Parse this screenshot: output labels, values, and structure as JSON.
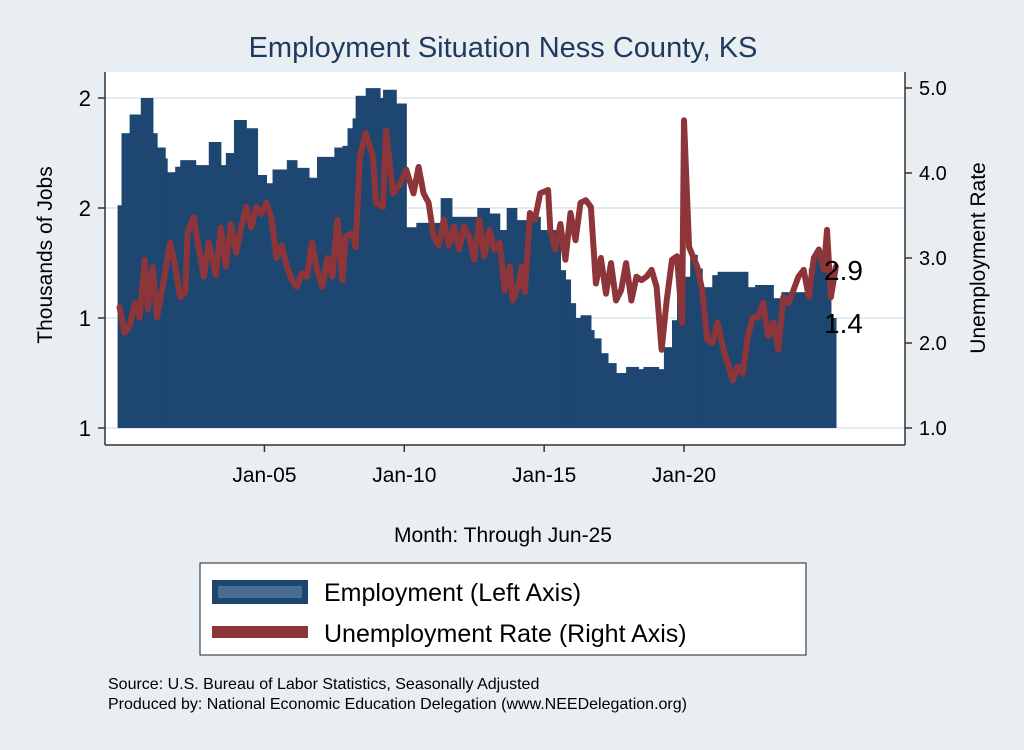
{
  "chart_data": {
    "type": "bar+line",
    "title": "Employment Situation Ness  County, KS",
    "xlabel": "Month: Through Jun-25",
    "ylabel_left": "Thousands of Jobs",
    "ylabel_right": "Unemployment Rate",
    "x_ticks": [
      {
        "year": 2005,
        "label": "Jan-05"
      },
      {
        "year": 2010,
        "label": "Jan-10"
      },
      {
        "year": 2015,
        "label": "Jan-15"
      },
      {
        "year": 2020,
        "label": "Jan-20"
      }
    ],
    "left_ticks": [
      {
        "value": 1.2,
        "label": "1"
      },
      {
        "value": 1.4,
        "label": "1"
      },
      {
        "value": 1.6,
        "label": "2"
      },
      {
        "value": 1.8,
        "label": "2"
      }
    ],
    "right_ticks": [
      {
        "value": 1.0,
        "label": "1.0"
      },
      {
        "value": 2.0,
        "label": "2.0"
      },
      {
        "value": 3.0,
        "label": "3.0"
      },
      {
        "value": 4.0,
        "label": "4.0"
      },
      {
        "value": 5.0,
        "label": "5.0"
      }
    ],
    "ylim_left": [
      1.2,
      1.88
    ],
    "ylim_right": [
      1.0,
      5.2
    ],
    "xlim": [
      1999.3,
      2027.9
    ],
    "grid": true,
    "end_labels": {
      "rate": "2.9",
      "employment": "1.4"
    },
    "legend": {
      "position": "bottom",
      "entries": [
        "Employment (Left Axis)",
        "Unemployment Rate (Right Axis)"
      ]
    },
    "colors": {
      "employment": "#1d4770",
      "rate": "#8e353a",
      "title": "#1f3a5f"
    },
    "series": [
      {
        "name": "Employment (Left Axis)",
        "kind": "step-bar",
        "end": 2025.43,
        "points": [
          [
            1999.75,
            1.605
          ],
          [
            1999.89,
            1.736
          ],
          [
            2000.18,
            1.77
          ],
          [
            2000.58,
            1.8
          ],
          [
            2001.01,
            1.736
          ],
          [
            2001.16,
            1.71
          ],
          [
            2001.45,
            1.69
          ],
          [
            2001.52,
            1.665
          ],
          [
            2001.81,
            1.675
          ],
          [
            2001.99,
            1.687
          ],
          [
            2002.54,
            1.678
          ],
          [
            2003.01,
            1.72
          ],
          [
            2003.44,
            1.678
          ],
          [
            2003.62,
            1.7
          ],
          [
            2003.91,
            1.76
          ],
          [
            2004.35,
            1.745
          ],
          [
            2004.75,
            1.66
          ],
          [
            2005.07,
            1.645
          ],
          [
            2005.29,
            1.67
          ],
          [
            2005.8,
            1.687
          ],
          [
            2006.16,
            1.673
          ],
          [
            2006.59,
            1.655
          ],
          [
            2006.88,
            1.693
          ],
          [
            2007.5,
            1.71
          ],
          [
            2007.79,
            1.713
          ],
          [
            2007.97,
            1.745
          ],
          [
            2008.15,
            1.763
          ],
          [
            2008.26,
            1.804
          ],
          [
            2008.62,
            1.818
          ],
          [
            2009.13,
            1.8
          ],
          [
            2009.24,
            1.815
          ],
          [
            2009.71,
            1.79
          ],
          [
            2010.07,
            1.565
          ],
          [
            2010.43,
            1.573
          ],
          [
            2010.87,
            1.573
          ],
          [
            2011.3,
            1.618
          ],
          [
            2011.7,
            1.584
          ],
          [
            2012.14,
            1.584
          ],
          [
            2012.61,
            1.6
          ],
          [
            2013.04,
            1.59
          ],
          [
            2013.41,
            1.56
          ],
          [
            2013.66,
            1.6
          ],
          [
            2014.02,
            1.578
          ],
          [
            2014.49,
            1.584
          ],
          [
            2014.86,
            1.56
          ],
          [
            2015.4,
            1.547
          ],
          [
            2015.58,
            1.487
          ],
          [
            2015.76,
            1.47
          ],
          [
            2015.94,
            1.427
          ],
          [
            2016.12,
            1.4
          ],
          [
            2016.3,
            1.405
          ],
          [
            2016.67,
            1.378
          ],
          [
            2016.78,
            1.363
          ],
          [
            2017.03,
            1.336
          ],
          [
            2017.28,
            1.318
          ],
          [
            2017.57,
            1.3
          ],
          [
            2017.93,
            1.311
          ],
          [
            2018.37,
            1.307
          ],
          [
            2018.55,
            1.311
          ],
          [
            2019.09,
            1.307
          ],
          [
            2019.28,
            1.347
          ],
          [
            2019.57,
            1.396
          ],
          [
            2019.75,
            1.475
          ],
          [
            2020.22,
            1.515
          ],
          [
            2020.47,
            1.49
          ],
          [
            2020.65,
            1.456
          ],
          [
            2021.01,
            1.478
          ],
          [
            2021.2,
            1.484
          ],
          [
            2022.28,
            1.456
          ],
          [
            2022.54,
            1.46
          ],
          [
            2023.19,
            1.436
          ],
          [
            2023.48,
            1.447
          ],
          [
            2024.46,
            1.49
          ],
          [
            2024.64,
            1.518
          ],
          [
            2025.07,
            1.51
          ],
          [
            2025.25,
            1.4
          ]
        ]
      },
      {
        "name": "Unemployment Rate (Right Axis)",
        "kind": "line",
        "points": [
          [
            1999.82,
            2.42
          ],
          [
            2000.0,
            2.12
          ],
          [
            2000.18,
            2.2
          ],
          [
            2000.36,
            2.47
          ],
          [
            2000.54,
            2.3
          ],
          [
            2000.72,
            2.98
          ],
          [
            2000.83,
            2.4
          ],
          [
            2001.01,
            2.89
          ],
          [
            2001.16,
            2.3
          ],
          [
            2001.38,
            2.7
          ],
          [
            2001.63,
            3.18
          ],
          [
            2001.81,
            2.9
          ],
          [
            2001.99,
            2.54
          ],
          [
            2002.17,
            2.6
          ],
          [
            2002.25,
            3.29
          ],
          [
            2002.46,
            3.48
          ],
          [
            2002.61,
            3.2
          ],
          [
            2002.83,
            2.78
          ],
          [
            2003.01,
            3.18
          ],
          [
            2003.26,
            2.8
          ],
          [
            2003.44,
            3.36
          ],
          [
            2003.62,
            2.9
          ],
          [
            2003.8,
            3.4
          ],
          [
            2003.99,
            3.06
          ],
          [
            2004.17,
            3.36
          ],
          [
            2004.35,
            3.6
          ],
          [
            2004.53,
            3.36
          ],
          [
            2004.71,
            3.6
          ],
          [
            2004.89,
            3.52
          ],
          [
            2005.07,
            3.65
          ],
          [
            2005.25,
            3.48
          ],
          [
            2005.43,
            3.0
          ],
          [
            2005.62,
            3.15
          ],
          [
            2005.8,
            2.9
          ],
          [
            2005.98,
            2.74
          ],
          [
            2006.16,
            2.66
          ],
          [
            2006.34,
            2.82
          ],
          [
            2006.52,
            2.78
          ],
          [
            2006.7,
            3.18
          ],
          [
            2006.88,
            2.86
          ],
          [
            2007.07,
            2.66
          ],
          [
            2007.25,
            3.0
          ],
          [
            2007.43,
            2.78
          ],
          [
            2007.61,
            3.45
          ],
          [
            2007.79,
            2.74
          ],
          [
            2007.9,
            3.25
          ],
          [
            2008.15,
            3.29
          ],
          [
            2008.26,
            3.13
          ],
          [
            2008.41,
            4.19
          ],
          [
            2008.62,
            4.47
          ],
          [
            2008.88,
            4.19
          ],
          [
            2008.99,
            3.65
          ],
          [
            2009.24,
            3.6
          ],
          [
            2009.35,
            4.5
          ],
          [
            2009.6,
            3.76
          ],
          [
            2009.86,
            3.88
          ],
          [
            2010.07,
            4.04
          ],
          [
            2010.33,
            3.76
          ],
          [
            2010.51,
            4.07
          ],
          [
            2010.69,
            3.76
          ],
          [
            2010.87,
            3.65
          ],
          [
            2011.05,
            3.25
          ],
          [
            2011.23,
            3.15
          ],
          [
            2011.41,
            3.45
          ],
          [
            2011.59,
            3.15
          ],
          [
            2011.78,
            3.37
          ],
          [
            2011.96,
            3.1
          ],
          [
            2012.14,
            3.37
          ],
          [
            2012.32,
            3.25
          ],
          [
            2012.5,
            2.98
          ],
          [
            2012.68,
            3.45
          ],
          [
            2012.86,
            3.02
          ],
          [
            2013.04,
            3.33
          ],
          [
            2013.22,
            3.1
          ],
          [
            2013.41,
            3.18
          ],
          [
            2013.59,
            2.62
          ],
          [
            2013.77,
            2.9
          ],
          [
            2013.88,
            2.5
          ],
          [
            2014.06,
            2.66
          ],
          [
            2014.2,
            2.9
          ],
          [
            2014.31,
            2.6
          ],
          [
            2014.49,
            3.53
          ],
          [
            2014.67,
            3.45
          ],
          [
            2014.86,
            3.76
          ],
          [
            2015.14,
            3.8
          ],
          [
            2015.22,
            3.33
          ],
          [
            2015.4,
            3.1
          ],
          [
            2015.58,
            3.4
          ],
          [
            2015.76,
            2.98
          ],
          [
            2015.94,
            3.53
          ],
          [
            2016.12,
            3.21
          ],
          [
            2016.3,
            3.65
          ],
          [
            2016.49,
            3.68
          ],
          [
            2016.67,
            3.6
          ],
          [
            2016.85,
            2.7
          ],
          [
            2017.03,
            3.0
          ],
          [
            2017.21,
            2.58
          ],
          [
            2017.39,
            2.94
          ],
          [
            2017.57,
            2.5
          ],
          [
            2017.75,
            2.62
          ],
          [
            2017.93,
            2.94
          ],
          [
            2018.12,
            2.5
          ],
          [
            2018.3,
            2.78
          ],
          [
            2018.48,
            2.74
          ],
          [
            2018.66,
            2.78
          ],
          [
            2018.84,
            2.86
          ],
          [
            2019.02,
            2.66
          ],
          [
            2019.2,
            1.92
          ],
          [
            2019.38,
            2.5
          ],
          [
            2019.57,
            2.98
          ],
          [
            2019.75,
            3.02
          ],
          [
            2019.93,
            2.24
          ],
          [
            2020.0,
            4.62
          ],
          [
            2020.18,
            3.13
          ],
          [
            2020.47,
            2.9
          ],
          [
            2020.65,
            2.62
          ],
          [
            2020.83,
            2.04
          ],
          [
            2021.01,
            2.0
          ],
          [
            2021.2,
            2.24
          ],
          [
            2021.38,
            1.96
          ],
          [
            2021.56,
            1.76
          ],
          [
            2021.74,
            1.56
          ],
          [
            2021.92,
            1.72
          ],
          [
            2022.1,
            1.64
          ],
          [
            2022.28,
            2.08
          ],
          [
            2022.46,
            2.3
          ],
          [
            2022.64,
            2.3
          ],
          [
            2022.83,
            2.47
          ],
          [
            2023.01,
            2.08
          ],
          [
            2023.19,
            2.24
          ],
          [
            2023.37,
            1.92
          ],
          [
            2023.55,
            2.54
          ],
          [
            2023.73,
            2.47
          ],
          [
            2023.91,
            2.62
          ],
          [
            2024.09,
            2.78
          ],
          [
            2024.28,
            2.86
          ],
          [
            2024.46,
            2.54
          ],
          [
            2024.64,
            3.0
          ],
          [
            2024.82,
            3.1
          ],
          [
            2025.0,
            2.86
          ],
          [
            2025.11,
            3.33
          ],
          [
            2025.25,
            2.54
          ],
          [
            2025.43,
            2.9
          ]
        ]
      }
    ],
    "source_lines": [
      "Source: U.S. Bureau of Labor Statistics, Seasonally Adjusted",
      "Produced by: National Economic Education Delegation (www.NEEDelegation.org)"
    ]
  }
}
